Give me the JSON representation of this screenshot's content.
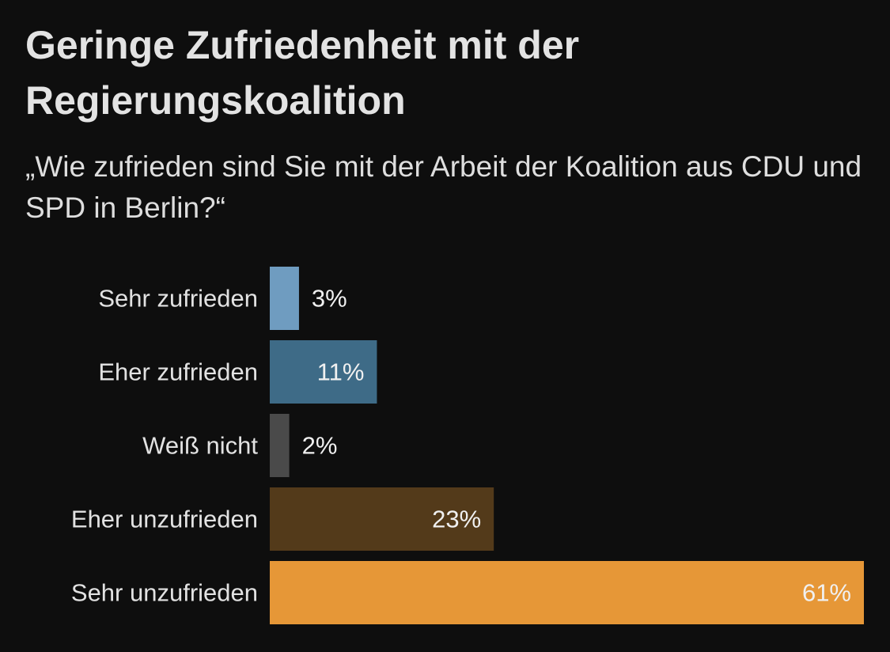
{
  "chart_data": {
    "type": "bar",
    "orientation": "horizontal",
    "title": "Geringe Zufriedenheit mit der Regierungskoalition",
    "subtitle": "„Wie zufrieden sind Sie mit der Arbeit der Koalition aus CDU und SPD in Berlin?“",
    "categories": [
      "Sehr zufrieden",
      "Eher zufrieden",
      "Weiß nicht",
      "Eher unzufrieden",
      "Sehr unzufrieden"
    ],
    "values": [
      3,
      11,
      2,
      23,
      61
    ],
    "value_labels": [
      "3%",
      "11%",
      "2%",
      "23%",
      "61%"
    ],
    "colors": [
      "#6f9cc0",
      "#3e6b87",
      "#4a4a4a",
      "#533a1a",
      "#e69737"
    ],
    "xlim": [
      0,
      61
    ],
    "unit": "%",
    "grid": false,
    "legend": false
  }
}
